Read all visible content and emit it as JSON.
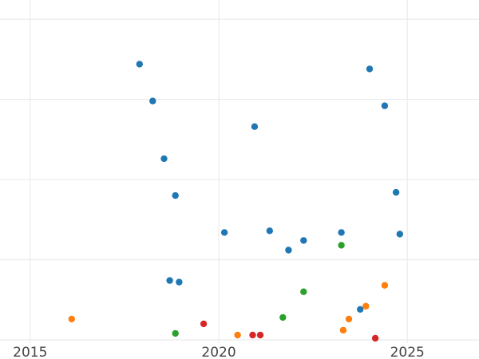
{
  "chart_data": {
    "type": "scatter",
    "title": "",
    "xlabel": "",
    "ylabel": "",
    "xlim": [
      2014.2,
      2026.9
    ],
    "ylim": [
      -0.2,
      21.2
    ],
    "x_ticks": [
      2015,
      2020,
      2025
    ],
    "x_tick_labels": [
      "2015",
      "2020",
      "2025"
    ],
    "y_gridlines": [
      0,
      5,
      10,
      15,
      20
    ],
    "grid": true,
    "legend": "none",
    "series": [
      {
        "color": "#1f77b4",
        "points": [
          {
            "x": 2017.9,
            "y": 17.2
          },
          {
            "x": 2018.25,
            "y": 14.9
          },
          {
            "x": 2018.55,
            "y": 11.3
          },
          {
            "x": 2018.85,
            "y": 9.0
          },
          {
            "x": 2018.7,
            "y": 3.7
          },
          {
            "x": 2018.95,
            "y": 3.6
          },
          {
            "x": 2020.15,
            "y": 6.7
          },
          {
            "x": 2020.95,
            "y": 13.3
          },
          {
            "x": 2021.35,
            "y": 6.8
          },
          {
            "x": 2021.85,
            "y": 5.6
          },
          {
            "x": 2022.25,
            "y": 6.2
          },
          {
            "x": 2023.25,
            "y": 6.7
          },
          {
            "x": 2023.75,
            "y": 1.9
          },
          {
            "x": 2024.0,
            "y": 16.9
          },
          {
            "x": 2024.4,
            "y": 14.6
          },
          {
            "x": 2024.7,
            "y": 9.2
          },
          {
            "x": 2024.8,
            "y": 6.6
          }
        ]
      },
      {
        "color": "#ff7f0e",
        "points": [
          {
            "x": 2016.1,
            "y": 1.3
          },
          {
            "x": 2020.5,
            "y": 0.3
          },
          {
            "x": 2023.3,
            "y": 0.6
          },
          {
            "x": 2023.45,
            "y": 1.3
          },
          {
            "x": 2023.9,
            "y": 2.1
          },
          {
            "x": 2024.4,
            "y": 3.4
          }
        ]
      },
      {
        "color": "#2ca02c",
        "points": [
          {
            "x": 2018.85,
            "y": 0.4
          },
          {
            "x": 2021.7,
            "y": 1.4
          },
          {
            "x": 2022.25,
            "y": 3.0
          },
          {
            "x": 2023.25,
            "y": 5.9
          }
        ]
      },
      {
        "color": "#d62728",
        "points": [
          {
            "x": 2019.6,
            "y": 1.0
          },
          {
            "x": 2020.9,
            "y": 0.3
          },
          {
            "x": 2021.1,
            "y": 0.3
          },
          {
            "x": 2024.15,
            "y": 0.1
          }
        ]
      }
    ]
  }
}
